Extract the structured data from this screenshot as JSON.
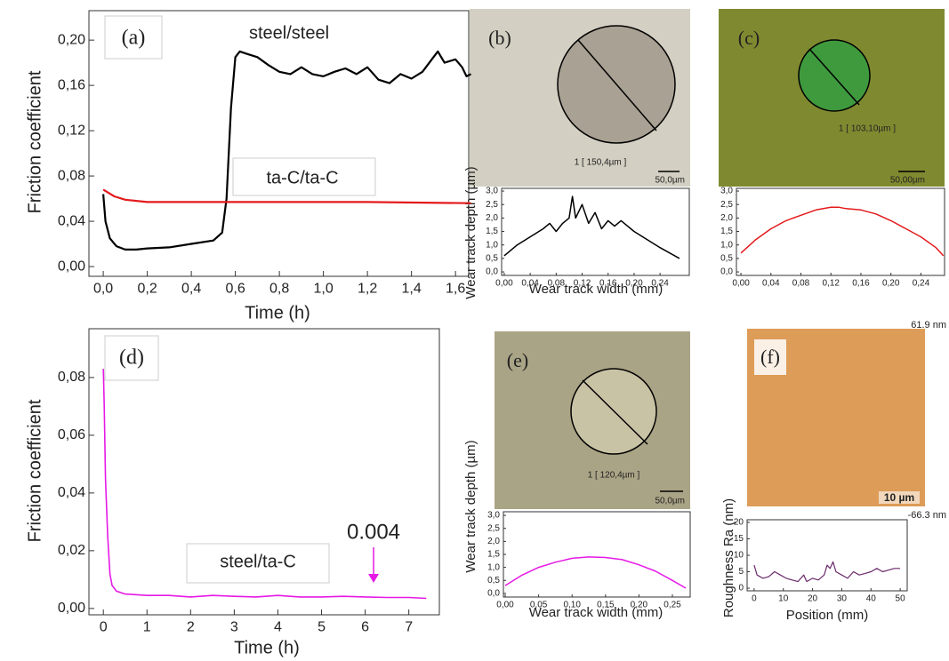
{
  "chart_data": [
    {
      "type": "line",
      "panel_label": "(a)",
      "x_label": "Time (h)",
      "y_label": "Friction coefficient",
      "xlim": [
        -0.065,
        1.66
      ],
      "ylim": [
        -0.0086,
        0.226
      ],
      "xticks": [
        {
          "value": 0,
          "label": "0,0"
        },
        {
          "value": 0.2,
          "label": "0,2"
        },
        {
          "value": 0.4,
          "label": "0,4"
        },
        {
          "value": 0.6,
          "label": "0,6"
        },
        {
          "value": 0.8,
          "label": "0,8"
        },
        {
          "value": 1.0,
          "label": "1,0"
        },
        {
          "value": 1.2,
          "label": "1,2"
        },
        {
          "value": 1.4,
          "label": "1,4"
        },
        {
          "value": 1.6,
          "label": "1,6"
        }
      ],
      "yticks": [
        {
          "value": 0,
          "label": "0,00"
        },
        {
          "value": 0.04,
          "label": "0,04"
        },
        {
          "value": 0.08,
          "label": "0,08"
        },
        {
          "value": 0.12,
          "label": "0,12"
        },
        {
          "value": 0.16,
          "label": "0,16"
        },
        {
          "value": 0.2,
          "label": "0,20"
        }
      ],
      "series": [
        {
          "name": "steel/steel",
          "color": "#000000",
          "x": [
            0,
            0.01,
            0.03,
            0.06,
            0.1,
            0.15,
            0.2,
            0.3,
            0.4,
            0.5,
            0.54,
            0.56,
            0.58,
            0.6,
            0.62,
            0.65,
            0.7,
            0.75,
            0.8,
            0.85,
            0.9,
            0.95,
            1.0,
            1.05,
            1.1,
            1.15,
            1.2,
            1.25,
            1.3,
            1.35,
            1.4,
            1.45,
            1.5,
            1.52,
            1.55,
            1.6,
            1.63,
            1.65,
            1.67
          ],
          "values": [
            0.064,
            0.04,
            0.025,
            0.018,
            0.015,
            0.015,
            0.016,
            0.017,
            0.02,
            0.023,
            0.03,
            0.06,
            0.14,
            0.185,
            0.19,
            0.188,
            0.185,
            0.178,
            0.172,
            0.17,
            0.176,
            0.17,
            0.168,
            0.172,
            0.175,
            0.17,
            0.176,
            0.165,
            0.162,
            0.17,
            0.166,
            0.172,
            0.185,
            0.19,
            0.18,
            0.183,
            0.176,
            0.168,
            0.17
          ]
        },
        {
          "name": "ta-C/ta-C",
          "color": "#e31a1c",
          "x": [
            0,
            0.05,
            0.1,
            0.2,
            0.4,
            0.8,
            1.2,
            1.67
          ],
          "values": [
            0.068,
            0.062,
            0.059,
            0.057,
            0.057,
            0.057,
            0.057,
            0.056
          ]
        }
      ]
    },
    {
      "type": "line",
      "panel_label": "(b)",
      "image_labels": [
        "1 [ 150,4µm ]",
        "50,0µm"
      ],
      "x_label": "Wear track width (mm)",
      "y_label": "Wear track depth (µm)",
      "xlim": [
        -0.004,
        0.285
      ],
      "ylim": [
        -0.13,
        3.1
      ],
      "xticks": [
        {
          "value": 0,
          "label": "0,00"
        },
        {
          "value": 0.04,
          "label": "0,04"
        },
        {
          "value": 0.08,
          "label": "0,08"
        },
        {
          "value": 0.12,
          "label": "0,12"
        },
        {
          "value": 0.16,
          "label": "0,16"
        },
        {
          "value": 0.2,
          "label": "0,20"
        },
        {
          "value": 0.24,
          "label": "0,24"
        }
      ],
      "yticks": [
        {
          "value": 0,
          "label": "0,0"
        },
        {
          "value": 0.5,
          "label": "0,5"
        },
        {
          "value": 1.0,
          "label": "1,0"
        },
        {
          "value": 1.5,
          "label": "1,5"
        },
        {
          "value": 2.0,
          "label": "2,0"
        },
        {
          "value": 2.5,
          "label": "2,5"
        },
        {
          "value": 3.0,
          "label": "3,0"
        }
      ],
      "series": [
        {
          "color": "#000000",
          "x": [
            0,
            0.02,
            0.04,
            0.06,
            0.07,
            0.08,
            0.09,
            0.1,
            0.105,
            0.11,
            0.12,
            0.13,
            0.14,
            0.15,
            0.16,
            0.17,
            0.18,
            0.2,
            0.22,
            0.24,
            0.27
          ],
          "values": [
            0.6,
            1.0,
            1.3,
            1.6,
            1.8,
            1.5,
            1.8,
            2.0,
            2.8,
            2.0,
            2.5,
            1.8,
            2.2,
            1.6,
            1.9,
            1.7,
            1.9,
            1.5,
            1.2,
            0.9,
            0.5
          ]
        }
      ]
    },
    {
      "type": "line",
      "panel_label": "(c)",
      "image_labels": [
        "1 [ 103,10µm ]",
        "50,00µm"
      ],
      "xlim": [
        -0.006,
        0.2715
      ],
      "ylim": [
        -0.13,
        3.1
      ],
      "xticks": [
        {
          "value": 0,
          "label": "0,00"
        },
        {
          "value": 0.04,
          "label": "0,04"
        },
        {
          "value": 0.08,
          "label": "0,08"
        },
        {
          "value": 0.12,
          "label": "0,12"
        },
        {
          "value": 0.16,
          "label": "0,16"
        },
        {
          "value": 0.2,
          "label": "0,20"
        },
        {
          "value": 0.24,
          "label": "0,24"
        }
      ],
      "yticks": [
        {
          "value": 0,
          "label": "0,0"
        },
        {
          "value": 0.5,
          "label": "0,5"
        },
        {
          "value": 1.0,
          "label": "1,0"
        },
        {
          "value": 1.5,
          "label": "1,5"
        },
        {
          "value": 2.0,
          "label": "2,0"
        },
        {
          "value": 2.5,
          "label": "2,5"
        },
        {
          "value": 3.0,
          "label": "3,0"
        }
      ],
      "series": [
        {
          "color": "#e31a1c",
          "x": [
            0,
            0.02,
            0.04,
            0.06,
            0.08,
            0.1,
            0.12,
            0.13,
            0.14,
            0.16,
            0.18,
            0.2,
            0.22,
            0.24,
            0.26,
            0.27
          ],
          "values": [
            0.7,
            1.2,
            1.6,
            1.9,
            2.1,
            2.3,
            2.4,
            2.4,
            2.35,
            2.3,
            2.15,
            1.9,
            1.6,
            1.3,
            0.9,
            0.6
          ]
        }
      ]
    },
    {
      "type": "line",
      "panel_label": "(d)",
      "x_label": "Time (h)",
      "y_label": "Friction coefficient",
      "annotation": "0.004",
      "xlim": [
        -0.33,
        7.7
      ],
      "ylim": [
        -0.0022,
        0.0969
      ],
      "xticks": [
        0,
        1,
        2,
        3,
        4,
        5,
        6,
        7
      ],
      "yticks": [
        {
          "value": 0,
          "label": "0,00"
        },
        {
          "value": 0.02,
          "label": "0,02"
        },
        {
          "value": 0.04,
          "label": "0,04"
        },
        {
          "value": 0.06,
          "label": "0,06"
        },
        {
          "value": 0.08,
          "label": "0,08"
        }
      ],
      "series": [
        {
          "name": "steel/ta-C",
          "color": "#e619e6",
          "x": [
            0,
            0.02,
            0.05,
            0.1,
            0.15,
            0.2,
            0.3,
            0.5,
            1,
            1.5,
            2,
            2.5,
            3,
            3.5,
            4,
            4.5,
            5,
            5.5,
            6,
            6.5,
            7,
            7.4
          ],
          "values": [
            0.083,
            0.07,
            0.045,
            0.025,
            0.012,
            0.008,
            0.006,
            0.005,
            0.0045,
            0.0045,
            0.004,
            0.0045,
            0.0042,
            0.004,
            0.0045,
            0.004,
            0.004,
            0.0042,
            0.004,
            0.0038,
            0.0038,
            0.0035
          ]
        }
      ]
    },
    {
      "type": "line",
      "panel_label": "(e)",
      "image_labels": [
        "1 [ 120,4µm ]",
        "50,0µm"
      ],
      "x_label": "Wear track width (mm)",
      "y_label": "Wear track depth (µm)",
      "xlim": [
        -0.0027,
        0.2766
      ],
      "ylim": [
        -0.14,
        3.14
      ],
      "xticks": [
        {
          "value": 0,
          "label": "0,00"
        },
        {
          "value": 0.05,
          "label": "0,05"
        },
        {
          "value": 0.1,
          "label": "0,10"
        },
        {
          "value": 0.15,
          "label": "0,15"
        },
        {
          "value": 0.2,
          "label": "0,20"
        },
        {
          "value": 0.25,
          "label": "0,25"
        }
      ],
      "yticks": [
        {
          "value": 0,
          "label": "0,0"
        },
        {
          "value": 0.5,
          "label": "0,5"
        },
        {
          "value": 1.0,
          "label": "1,0"
        },
        {
          "value": 1.5,
          "label": "1,5"
        },
        {
          "value": 2.0,
          "label": "2,0"
        },
        {
          "value": 2.5,
          "label": "2,5"
        },
        {
          "value": 3.0,
          "label": "3,0"
        }
      ],
      "series": [
        {
          "color": "#e619e6",
          "x": [
            0,
            0.025,
            0.05,
            0.075,
            0.1,
            0.125,
            0.15,
            0.175,
            0.2,
            0.225,
            0.25,
            0.27
          ],
          "values": [
            0.3,
            0.7,
            1.0,
            1.2,
            1.35,
            1.4,
            1.38,
            1.3,
            1.1,
            0.85,
            0.5,
            0.2
          ]
        }
      ]
    },
    {
      "type": "line",
      "panel_label": "(f)",
      "image_labels": [
        "61.9 nm",
        "-66.3 nm",
        "10 µm"
      ],
      "x_label": "Position (mm)",
      "y_label": "Roughness Ra (nm)",
      "xlim": [
        -2.4,
        52.4
      ],
      "ylim": [
        -0.8,
        20.8
      ],
      "xticks": [
        0,
        10,
        20,
        30,
        40,
        50
      ],
      "yticks": [
        0,
        5,
        10,
        15,
        20
      ],
      "series": [
        {
          "color": "#6b2a6b",
          "x": [
            0,
            1,
            3,
            5,
            7,
            9,
            11,
            13,
            15,
            16,
            17,
            18,
            20,
            22,
            24,
            25,
            26,
            27,
            28,
            30,
            32,
            34,
            36,
            38,
            40,
            42,
            44,
            46,
            48,
            50
          ],
          "values": [
            7,
            4,
            3,
            3.5,
            5,
            4,
            3,
            2.5,
            2,
            3,
            4,
            2,
            3,
            2.5,
            4,
            7,
            6,
            8,
            5,
            4,
            3,
            5,
            4,
            4.5,
            5,
            6,
            5,
            5.5,
            6,
            6
          ]
        }
      ]
    }
  ]
}
